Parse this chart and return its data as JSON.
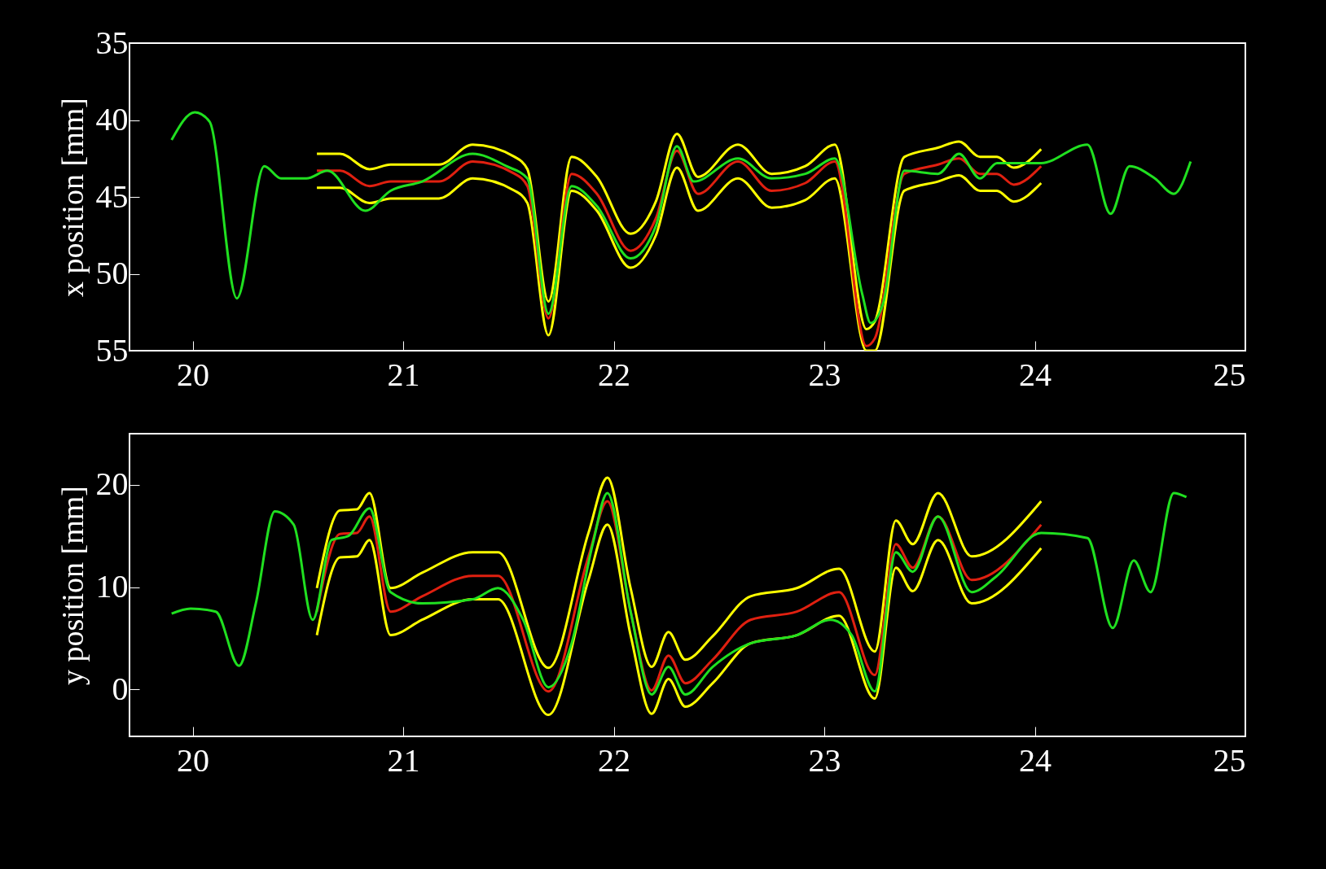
{
  "chart_data": [
    {
      "type": "line",
      "ylabel": "x position [mm]",
      "xlim": [
        19.7,
        25
      ],
      "xticks": [
        20,
        21,
        22,
        23,
        24,
        25
      ],
      "ylim": [
        55,
        35
      ],
      "yticks": [
        35,
        40,
        45,
        50,
        55
      ],
      "grid": false,
      "series": [
        {
          "color": "#ffff00",
          "x": [
            20.59,
            20.7,
            20.84,
            20.94,
            21.17,
            21.33,
            21.53,
            21.59,
            21.69,
            21.8,
            21.92,
            22.08,
            22.2,
            22.3,
            22.4,
            22.59,
            22.75,
            22.91,
            23.05,
            23.2,
            23.24,
            23.38,
            23.54,
            23.64,
            23.74,
            23.82,
            23.9,
            24.03
          ],
          "values": [
            42.2,
            42.2,
            43.2,
            42.9,
            42.9,
            41.6,
            42.4,
            43.2,
            51.8,
            42.4,
            43.7,
            47.4,
            45.3,
            40.9,
            43.7,
            41.6,
            43.5,
            43.0,
            41.6,
            53.6,
            53.1,
            42.4,
            41.8,
            41.4,
            42.4,
            42.4,
            43.1,
            41.9
          ]
        },
        {
          "color": "#ffff00",
          "x": [
            20.59,
            20.7,
            20.84,
            20.94,
            21.17,
            21.33,
            21.53,
            21.59,
            21.69,
            21.8,
            21.92,
            22.08,
            22.2,
            22.3,
            22.4,
            22.59,
            22.75,
            22.91,
            23.05,
            23.2,
            23.24,
            23.38,
            23.54,
            23.64,
            23.74,
            23.82,
            23.9,
            24.03
          ],
          "values": [
            44.4,
            44.4,
            45.4,
            45.1,
            45.1,
            43.8,
            44.6,
            45.4,
            54.0,
            44.6,
            45.9,
            49.6,
            47.5,
            43.1,
            45.9,
            43.8,
            45.7,
            45.2,
            43.8,
            55.0,
            55.0,
            44.6,
            44.0,
            43.6,
            44.6,
            44.6,
            45.3,
            44.1
          ]
        },
        {
          "color": "#e02010",
          "x": [
            20.59,
            20.7,
            20.84,
            20.94,
            21.17,
            21.33,
            21.53,
            21.59,
            21.69,
            21.8,
            21.92,
            22.08,
            22.2,
            22.3,
            22.4,
            22.59,
            22.75,
            22.91,
            23.05,
            23.2,
            23.24,
            23.38,
            23.54,
            23.64,
            23.74,
            23.82,
            23.9,
            24.03
          ],
          "values": [
            43.3,
            43.3,
            44.3,
            44.0,
            44.0,
            42.7,
            43.5,
            44.3,
            52.9,
            43.5,
            44.8,
            48.5,
            46.4,
            42.0,
            44.8,
            42.7,
            44.6,
            44.1,
            42.7,
            54.7,
            54.2,
            43.5,
            42.9,
            42.5,
            43.5,
            43.5,
            44.2,
            43.0
          ]
        },
        {
          "color": "#20e020",
          "x": [
            19.9,
            20.01,
            20.08,
            20.21,
            20.34,
            20.42,
            20.54,
            20.64,
            20.82,
            20.94,
            21.09,
            21.33,
            21.49,
            21.59,
            21.69,
            21.8,
            21.92,
            22.08,
            22.2,
            22.3,
            22.38,
            22.59,
            22.75,
            22.91,
            23.05,
            23.18,
            23.22,
            23.28,
            23.38,
            23.54,
            23.64,
            23.74,
            23.82,
            24.03,
            24.25,
            24.36,
            24.45,
            24.57,
            24.66,
            24.74
          ],
          "values": [
            41.3,
            39.5,
            40.1,
            51.6,
            43.0,
            43.8,
            43.8,
            43.3,
            45.9,
            44.6,
            44.0,
            42.2,
            43.0,
            43.8,
            52.6,
            44.3,
            45.6,
            49.0,
            46.9,
            41.7,
            44.0,
            42.5,
            43.8,
            43.5,
            42.5,
            51.3,
            53.2,
            51.9,
            43.3,
            43.5,
            42.2,
            43.8,
            42.8,
            42.8,
            41.6,
            46.1,
            43.0,
            43.8,
            44.8,
            42.7
          ]
        }
      ]
    },
    {
      "type": "line",
      "ylabel": "y position [mm]",
      "xlim": [
        19.7,
        25
      ],
      "xticks": [
        20,
        21,
        22,
        23,
        24,
        25
      ],
      "ylim": [
        -4.6,
        25
      ],
      "yticks": [
        0,
        10,
        20
      ],
      "grid": false,
      "series": [
        {
          "color": "#ffff00",
          "x": [
            20.59,
            20.7,
            20.78,
            20.84,
            20.94,
            21.09,
            21.33,
            21.45,
            21.69,
            21.88,
            21.97,
            22.08,
            22.18,
            22.26,
            22.34,
            22.47,
            22.65,
            22.87,
            23.07,
            23.24,
            23.34,
            23.42,
            23.54,
            23.7,
            24.03
          ],
          "values": [
            9.9,
            17.5,
            17.6,
            19.2,
            9.9,
            11.4,
            13.4,
            13.4,
            2.1,
            15.3,
            20.7,
            9.9,
            2.2,
            5.6,
            2.9,
            5.2,
            9.1,
            9.9,
            11.8,
            3.7,
            16.5,
            14.2,
            19.2,
            13.0,
            18.4
          ]
        },
        {
          "color": "#ffff00",
          "x": [
            20.59,
            20.7,
            20.78,
            20.84,
            20.94,
            21.09,
            21.33,
            21.45,
            21.69,
            21.88,
            21.97,
            22.08,
            22.18,
            22.26,
            22.34,
            22.47,
            22.65,
            22.87,
            23.07,
            23.24,
            23.34,
            23.42,
            23.54,
            23.7,
            24.03
          ],
          "values": [
            5.3,
            12.9,
            13.0,
            14.6,
            5.3,
            6.8,
            8.8,
            8.8,
            -2.5,
            10.7,
            16.1,
            5.3,
            -2.4,
            1.0,
            -1.7,
            0.6,
            4.5,
            5.3,
            7.2,
            -0.9,
            11.9,
            9.6,
            14.6,
            8.4,
            13.8
          ]
        },
        {
          "color": "#e02010",
          "x": [
            20.59,
            20.7,
            20.78,
            20.84,
            20.94,
            21.09,
            21.33,
            21.45,
            21.69,
            21.88,
            21.97,
            22.08,
            22.18,
            22.26,
            22.34,
            22.47,
            22.65,
            22.87,
            23.07,
            23.24,
            23.34,
            23.42,
            23.54,
            23.7,
            24.03
          ],
          "values": [
            7.6,
            15.2,
            15.3,
            16.9,
            7.6,
            9.1,
            11.1,
            11.1,
            -0.2,
            13.0,
            18.4,
            7.6,
            -0.1,
            3.3,
            0.6,
            2.9,
            6.8,
            7.6,
            9.5,
            1.4,
            14.2,
            11.9,
            16.9,
            10.7,
            16.1
          ]
        },
        {
          "color": "#20e020",
          "x": [
            19.9,
            19.99,
            20.11,
            20.22,
            20.3,
            20.39,
            20.48,
            20.57,
            20.66,
            20.74,
            20.84,
            20.94,
            21.09,
            21.33,
            21.45,
            21.57,
            21.69,
            21.8,
            21.9,
            21.97,
            22.08,
            22.18,
            22.26,
            22.34,
            22.47,
            22.65,
            22.87,
            23.03,
            23.13,
            23.24,
            23.34,
            23.42,
            23.54,
            23.7,
            23.82,
            24.03,
            24.25,
            24.37,
            24.47,
            24.55,
            24.66,
            24.72
          ],
          "values": [
            7.4,
            7.9,
            7.6,
            2.3,
            8.4,
            17.4,
            16.1,
            6.8,
            14.6,
            15.0,
            17.7,
            9.5,
            8.4,
            8.8,
            9.9,
            6.8,
            0.2,
            4.5,
            14.2,
            19.2,
            7.6,
            -0.5,
            2.2,
            -0.5,
            2.2,
            4.5,
            5.3,
            6.8,
            5.3,
            -0.2,
            13.4,
            11.5,
            16.9,
            9.5,
            11.1,
            15.3,
            14.8,
            6.0,
            12.6,
            9.5,
            19.2,
            18.8
          ]
        }
      ]
    }
  ]
}
